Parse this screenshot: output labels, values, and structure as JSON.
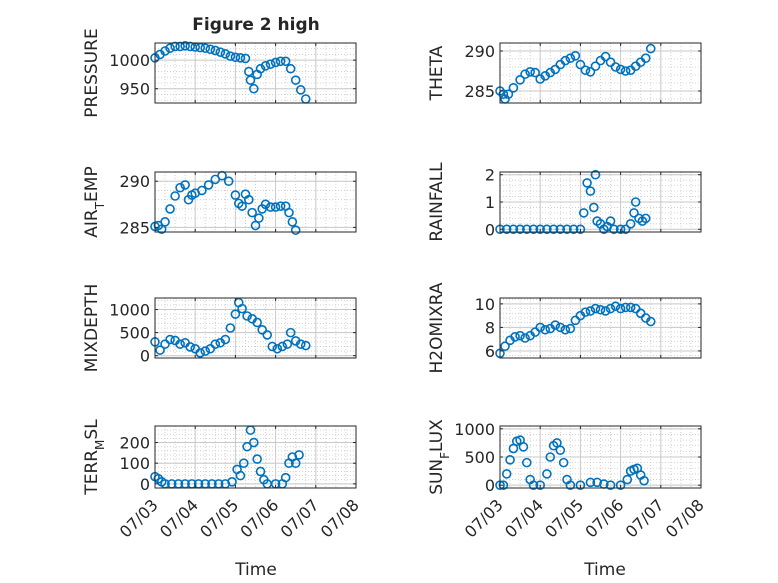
{
  "figure": {
    "title": "Figure 2 high"
  },
  "colors": {
    "marker": "#0072BD",
    "axis": "#262626",
    "grid": "#c8c8c8"
  },
  "x_axis": {
    "label": "Time",
    "ticks": [
      {
        "date": "2024-07-03",
        "label": "07/03"
      },
      {
        "date": "2024-07-04",
        "label": "07/04"
      },
      {
        "date": "2024-07-05",
        "label": "07/05"
      },
      {
        "date": "2024-07-06",
        "label": "07/06"
      },
      {
        "date": "2024-07-07",
        "label": "07/07"
      },
      {
        "date": "2024-07-08",
        "label": "07/08"
      }
    ],
    "xlim": [
      "2024-07-03",
      "2024-07-08"
    ]
  },
  "chart_data": [
    {
      "type": "scatter",
      "title": "Figure 2 high",
      "ylabel": "PRESSURE",
      "ylim": [
        925,
        1030
      ],
      "yticks": [
        950,
        1000
      ],
      "grid": true,
      "minor_grid": true,
      "points": [
        [
          "2024-07-03T00:00",
          1004
        ],
        [
          "2024-07-03T03:00",
          1010
        ],
        [
          "2024-07-03T06:00",
          1016
        ],
        [
          "2024-07-03T09:00",
          1021
        ],
        [
          "2024-07-03T12:00",
          1024
        ],
        [
          "2024-07-03T15:00",
          1024
        ],
        [
          "2024-07-03T18:00",
          1025
        ],
        [
          "2024-07-03T21:00",
          1024
        ],
        [
          "2024-07-04T00:00",
          1023
        ],
        [
          "2024-07-04T03:00",
          1022
        ],
        [
          "2024-07-04T06:00",
          1021
        ],
        [
          "2024-07-04T09:00",
          1019
        ],
        [
          "2024-07-04T12:00",
          1017
        ],
        [
          "2024-07-04T15:00",
          1014
        ],
        [
          "2024-07-04T18:00",
          1011
        ],
        [
          "2024-07-04T21:00",
          1007
        ],
        [
          "2024-07-05T00:00",
          1005
        ],
        [
          "2024-07-05T03:00",
          1004
        ],
        [
          "2024-07-05T06:00",
          1003
        ],
        [
          "2024-07-05T08:00",
          980
        ],
        [
          "2024-07-05T09:00",
          965
        ],
        [
          "2024-07-05T11:00",
          950
        ],
        [
          "2024-07-05T13:00",
          975
        ],
        [
          "2024-07-05T15:00",
          985
        ],
        [
          "2024-07-05T18:00",
          990
        ],
        [
          "2024-07-05T21:00",
          993
        ],
        [
          "2024-07-06T00:00",
          996
        ],
        [
          "2024-07-06T03:00",
          998
        ],
        [
          "2024-07-06T06:00",
          998
        ],
        [
          "2024-07-06T09:00",
          985
        ],
        [
          "2024-07-06T12:00",
          965
        ],
        [
          "2024-07-06T15:00",
          948
        ],
        [
          "2024-07-06T18:00",
          932
        ]
      ]
    },
    {
      "type": "scatter",
      "ylabel": "THETA",
      "ylim": [
        283.5,
        291
      ],
      "yticks": [
        285,
        290
      ],
      "grid": true,
      "minor_grid": true,
      "points": [
        [
          "2024-07-03T00:00",
          285
        ],
        [
          "2024-07-03T02:00",
          284.6
        ],
        [
          "2024-07-03T03:00",
          284
        ],
        [
          "2024-07-03T05:00",
          284.6
        ],
        [
          "2024-07-03T08:00",
          285.4
        ],
        [
          "2024-07-03T12:00",
          286.4
        ],
        [
          "2024-07-03T15:00",
          287.1
        ],
        [
          "2024-07-03T18:00",
          287.4
        ],
        [
          "2024-07-03T21:00",
          287.3
        ],
        [
          "2024-07-04T00:00",
          286.5
        ],
        [
          "2024-07-04T03:00",
          286.9
        ],
        [
          "2024-07-04T06:00",
          287.3
        ],
        [
          "2024-07-04T09:00",
          287.7
        ],
        [
          "2024-07-04T12:00",
          288.3
        ],
        [
          "2024-07-04T15:00",
          288.8
        ],
        [
          "2024-07-04T18:00",
          289.1
        ],
        [
          "2024-07-04T21:00",
          289.4
        ],
        [
          "2024-07-05T00:00",
          288.3
        ],
        [
          "2024-07-05T03:00",
          287.6
        ],
        [
          "2024-07-05T06:00",
          287.4
        ],
        [
          "2024-07-05T09:00",
          288.1
        ],
        [
          "2024-07-05T12:00",
          288.8
        ],
        [
          "2024-07-05T15:00",
          289.3
        ],
        [
          "2024-07-05T18:00",
          288.6
        ],
        [
          "2024-07-05T21:00",
          288
        ],
        [
          "2024-07-06T00:00",
          287.7
        ],
        [
          "2024-07-06T03:00",
          287.5
        ],
        [
          "2024-07-06T06:00",
          287.6
        ],
        [
          "2024-07-06T09:00",
          288.1
        ],
        [
          "2024-07-06T12:00",
          288.6
        ],
        [
          "2024-07-06T15:00",
          289.1
        ],
        [
          "2024-07-06T18:00",
          290.3
        ]
      ]
    },
    {
      "type": "scatter",
      "ylabel": "AIR_TEMP",
      "ylim": [
        284.5,
        291
      ],
      "yticks": [
        285,
        290
      ],
      "grid": true,
      "minor_grid": true,
      "points": [
        [
          "2024-07-03T00:00",
          285.1
        ],
        [
          "2024-07-03T02:00",
          285.2
        ],
        [
          "2024-07-03T04:00",
          284.8
        ],
        [
          "2024-07-03T06:00",
          285.6
        ],
        [
          "2024-07-03T09:00",
          287
        ],
        [
          "2024-07-03T12:00",
          288.4
        ],
        [
          "2024-07-03T15:00",
          289.3
        ],
        [
          "2024-07-03T18:00",
          289.6
        ],
        [
          "2024-07-03T20:00",
          288
        ],
        [
          "2024-07-03T22:00",
          288.5
        ],
        [
          "2024-07-04T00:00",
          288.7
        ],
        [
          "2024-07-04T04:00",
          289
        ],
        [
          "2024-07-04T08:00",
          289.6
        ],
        [
          "2024-07-04T12:00",
          290.2
        ],
        [
          "2024-07-04T16:00",
          290.6
        ],
        [
          "2024-07-04T20:00",
          290
        ],
        [
          "2024-07-05T00:00",
          288.5
        ],
        [
          "2024-07-05T02:00",
          287.6
        ],
        [
          "2024-07-05T04:00",
          287.3
        ],
        [
          "2024-07-05T06:00",
          288.6
        ],
        [
          "2024-07-05T08:00",
          288
        ],
        [
          "2024-07-05T10:00",
          286.6
        ],
        [
          "2024-07-05T12:00",
          285.2
        ],
        [
          "2024-07-05T14:00",
          286
        ],
        [
          "2024-07-05T16:00",
          287
        ],
        [
          "2024-07-05T18:00",
          287.5
        ],
        [
          "2024-07-05T21:00",
          287.2
        ],
        [
          "2024-07-06T00:00",
          287.2
        ],
        [
          "2024-07-06T03:00",
          287.3
        ],
        [
          "2024-07-06T06:00",
          287.3
        ],
        [
          "2024-07-06T08:00",
          286.6
        ],
        [
          "2024-07-06T10:00",
          285.6
        ],
        [
          "2024-07-06T12:00",
          284.7
        ]
      ]
    },
    {
      "type": "scatter",
      "ylabel": "RAINFALL",
      "ylim": [
        -0.1,
        2.1
      ],
      "yticks": [
        0,
        1,
        2
      ],
      "grid": true,
      "minor_grid": true,
      "points": [
        [
          "2024-07-03T00:00",
          0
        ],
        [
          "2024-07-03T04:00",
          0
        ],
        [
          "2024-07-03T08:00",
          0
        ],
        [
          "2024-07-03T12:00",
          0
        ],
        [
          "2024-07-03T16:00",
          0
        ],
        [
          "2024-07-03T20:00",
          0
        ],
        [
          "2024-07-04T00:00",
          0
        ],
        [
          "2024-07-04T04:00",
          0
        ],
        [
          "2024-07-04T08:00",
          0
        ],
        [
          "2024-07-04T12:00",
          0
        ],
        [
          "2024-07-04T16:00",
          0
        ],
        [
          "2024-07-04T20:00",
          0
        ],
        [
          "2024-07-05T00:00",
          0
        ],
        [
          "2024-07-05T02:00",
          0.6
        ],
        [
          "2024-07-05T04:00",
          1.7
        ],
        [
          "2024-07-05T06:00",
          1.4
        ],
        [
          "2024-07-05T08:00",
          0.8
        ],
        [
          "2024-07-05T09:00",
          2.0
        ],
        [
          "2024-07-05T10:00",
          0.3
        ],
        [
          "2024-07-05T12:00",
          0.2
        ],
        [
          "2024-07-05T14:00",
          0
        ],
        [
          "2024-07-05T16:00",
          0.1
        ],
        [
          "2024-07-05T18:00",
          0.3
        ],
        [
          "2024-07-05T20:00",
          0
        ],
        [
          "2024-07-06T00:00",
          0
        ],
        [
          "2024-07-06T03:00",
          0
        ],
        [
          "2024-07-06T06:00",
          0.2
        ],
        [
          "2024-07-06T08:00",
          0.6
        ],
        [
          "2024-07-06T09:00",
          1.0
        ],
        [
          "2024-07-06T11:00",
          0.4
        ],
        [
          "2024-07-06T13:00",
          0.3
        ],
        [
          "2024-07-06T15:00",
          0.4
        ]
      ]
    },
    {
      "type": "scatter",
      "ylabel": "MIXDEPTH",
      "ylim": [
        -50,
        1250
      ],
      "yticks": [
        0,
        500,
        1000
      ],
      "grid": true,
      "minor_grid": true,
      "points": [
        [
          "2024-07-03T00:00",
          300
        ],
        [
          "2024-07-03T03:00",
          120
        ],
        [
          "2024-07-03T06:00",
          250
        ],
        [
          "2024-07-03T09:00",
          350
        ],
        [
          "2024-07-03T12:00",
          330
        ],
        [
          "2024-07-03T15:00",
          250
        ],
        [
          "2024-07-03T18:00",
          280
        ],
        [
          "2024-07-03T21:00",
          190
        ],
        [
          "2024-07-04T00:00",
          150
        ],
        [
          "2024-07-04T03:00",
          60
        ],
        [
          "2024-07-04T06:00",
          100
        ],
        [
          "2024-07-04T09:00",
          150
        ],
        [
          "2024-07-04T12:00",
          250
        ],
        [
          "2024-07-04T15:00",
          280
        ],
        [
          "2024-07-04T18:00",
          350
        ],
        [
          "2024-07-04T21:00",
          600
        ],
        [
          "2024-07-05T00:00",
          900
        ],
        [
          "2024-07-05T02:00",
          1150
        ],
        [
          "2024-07-05T04:00",
          1020
        ],
        [
          "2024-07-05T07:00",
          860
        ],
        [
          "2024-07-05T10:00",
          800
        ],
        [
          "2024-07-05T13:00",
          720
        ],
        [
          "2024-07-05T16:00",
          560
        ],
        [
          "2024-07-05T19:00",
          450
        ],
        [
          "2024-07-05T22:00",
          200
        ],
        [
          "2024-07-06T01:00",
          150
        ],
        [
          "2024-07-06T04:00",
          200
        ],
        [
          "2024-07-06T07:00",
          250
        ],
        [
          "2024-07-06T09:00",
          500
        ],
        [
          "2024-07-06T12:00",
          320
        ],
        [
          "2024-07-06T15:00",
          250
        ],
        [
          "2024-07-06T18:00",
          220
        ]
      ]
    },
    {
      "type": "scatter",
      "ylabel": "H2OMIXRA",
      "ylim": [
        5.4,
        10.5
      ],
      "yticks": [
        6,
        8,
        10
      ],
      "grid": true,
      "minor_grid": true,
      "points": [
        [
          "2024-07-03T00:00",
          5.8
        ],
        [
          "2024-07-03T03:00",
          6.4
        ],
        [
          "2024-07-03T06:00",
          6.9
        ],
        [
          "2024-07-03T09:00",
          7.2
        ],
        [
          "2024-07-03T12:00",
          7.3
        ],
        [
          "2024-07-03T15:00",
          7.1
        ],
        [
          "2024-07-03T18:00",
          7.3
        ],
        [
          "2024-07-03T21:00",
          7.6
        ],
        [
          "2024-07-04T00:00",
          8.0
        ],
        [
          "2024-07-04T03:00",
          7.8
        ],
        [
          "2024-07-04T06:00",
          7.9
        ],
        [
          "2024-07-04T09:00",
          8.2
        ],
        [
          "2024-07-04T12:00",
          8.0
        ],
        [
          "2024-07-04T15:00",
          7.8
        ],
        [
          "2024-07-04T18:00",
          7.9
        ],
        [
          "2024-07-04T21:00",
          8.6
        ],
        [
          "2024-07-05T00:00",
          9.0
        ],
        [
          "2024-07-05T03:00",
          9.3
        ],
        [
          "2024-07-05T06:00",
          9.4
        ],
        [
          "2024-07-05T09:00",
          9.6
        ],
        [
          "2024-07-05T12:00",
          9.5
        ],
        [
          "2024-07-05T15:00",
          9.4
        ],
        [
          "2024-07-05T18:00",
          9.6
        ],
        [
          "2024-07-05T21:00",
          9.8
        ],
        [
          "2024-07-06T00:00",
          9.6
        ],
        [
          "2024-07-06T03:00",
          9.7
        ],
        [
          "2024-07-06T06:00",
          9.7
        ],
        [
          "2024-07-06T09:00",
          9.6
        ],
        [
          "2024-07-06T12:00",
          9.2
        ],
        [
          "2024-07-06T15:00",
          8.8
        ],
        [
          "2024-07-06T18:00",
          8.5
        ]
      ]
    },
    {
      "type": "scatter",
      "ylabel": "TERR_MSL",
      "ylim": [
        -20,
        280
      ],
      "yticks": [
        0,
        100,
        200
      ],
      "grid": true,
      "minor_grid": true,
      "points": [
        [
          "2024-07-03T00:00",
          35
        ],
        [
          "2024-07-03T02:00",
          25
        ],
        [
          "2024-07-03T04:00",
          10
        ],
        [
          "2024-07-03T06:00",
          0
        ],
        [
          "2024-07-03T10:00",
          0
        ],
        [
          "2024-07-03T14:00",
          0
        ],
        [
          "2024-07-03T18:00",
          0
        ],
        [
          "2024-07-03T22:00",
          0
        ],
        [
          "2024-07-04T02:00",
          0
        ],
        [
          "2024-07-04T06:00",
          0
        ],
        [
          "2024-07-04T10:00",
          0
        ],
        [
          "2024-07-04T14:00",
          0
        ],
        [
          "2024-07-04T18:00",
          0
        ],
        [
          "2024-07-04T22:00",
          10
        ],
        [
          "2024-07-05T01:00",
          70
        ],
        [
          "2024-07-05T03:00",
          40
        ],
        [
          "2024-07-05T05:00",
          100
        ],
        [
          "2024-07-05T07:00",
          180
        ],
        [
          "2024-07-05T09:00",
          260
        ],
        [
          "2024-07-05T11:00",
          200
        ],
        [
          "2024-07-05T13:00",
          120
        ],
        [
          "2024-07-05T15:00",
          60
        ],
        [
          "2024-07-05T17:00",
          20
        ],
        [
          "2024-07-05T19:00",
          0
        ],
        [
          "2024-07-06T00:00",
          0
        ],
        [
          "2024-07-06T04:00",
          0
        ],
        [
          "2024-07-06T06:00",
          30
        ],
        [
          "2024-07-06T08:00",
          100
        ],
        [
          "2024-07-06T10:00",
          130
        ],
        [
          "2024-07-06T12:00",
          100
        ],
        [
          "2024-07-06T14:00",
          140
        ]
      ]
    },
    {
      "type": "scatter",
      "ylabel": "SUN_FLUX",
      "ylim": [
        -50,
        1050
      ],
      "yticks": [
        0,
        500,
        1000
      ],
      "grid": true,
      "minor_grid": true,
      "points": [
        [
          "2024-07-03T00:00",
          0
        ],
        [
          "2024-07-03T02:00",
          0
        ],
        [
          "2024-07-03T04:00",
          200
        ],
        [
          "2024-07-03T06:00",
          450
        ],
        [
          "2024-07-03T08:00",
          650
        ],
        [
          "2024-07-03T10:00",
          780
        ],
        [
          "2024-07-03T12:00",
          800
        ],
        [
          "2024-07-03T14:00",
          680
        ],
        [
          "2024-07-03T16:00",
          400
        ],
        [
          "2024-07-03T18:00",
          100
        ],
        [
          "2024-07-03T20:00",
          0
        ],
        [
          "2024-07-04T00:00",
          0
        ],
        [
          "2024-07-04T04:00",
          200
        ],
        [
          "2024-07-04T06:00",
          500
        ],
        [
          "2024-07-04T08:00",
          700
        ],
        [
          "2024-07-04T10:00",
          750
        ],
        [
          "2024-07-04T12:00",
          620
        ],
        [
          "2024-07-04T14:00",
          400
        ],
        [
          "2024-07-04T16:00",
          100
        ],
        [
          "2024-07-04T18:00",
          0
        ],
        [
          "2024-07-05T00:00",
          0
        ],
        [
          "2024-07-05T06:00",
          50
        ],
        [
          "2024-07-05T10:00",
          50
        ],
        [
          "2024-07-05T14:00",
          20
        ],
        [
          "2024-07-05T18:00",
          0
        ],
        [
          "2024-07-06T00:00",
          0
        ],
        [
          "2024-07-06T04:00",
          100
        ],
        [
          "2024-07-06T06:00",
          250
        ],
        [
          "2024-07-06T08:00",
          280
        ],
        [
          "2024-07-06T10:00",
          300
        ],
        [
          "2024-07-06T12:00",
          180
        ],
        [
          "2024-07-06T14:00",
          80
        ]
      ]
    }
  ]
}
